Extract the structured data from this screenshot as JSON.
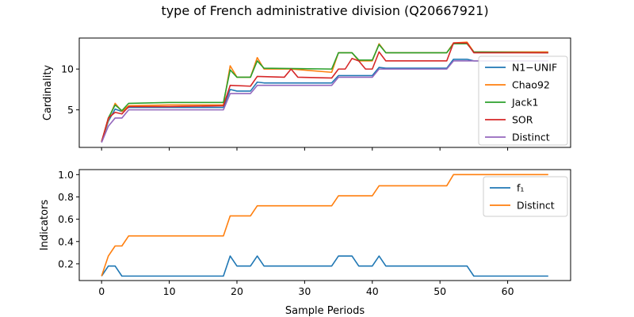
{
  "figure": {
    "title": "type of French administrative division (Q20667921)",
    "xlabel": "Sample Periods"
  },
  "chart_data": [
    {
      "type": "line",
      "title": "",
      "xlabel": "",
      "ylabel": "Cardinality",
      "xlim": [
        -3.3,
        69.3
      ],
      "ylim": [
        0.4,
        13.8
      ],
      "xticks": [
        0,
        10,
        20,
        30,
        40,
        50,
        60
      ],
      "xtick_labels": [],
      "yticks": [
        5,
        10
      ],
      "ytick_labels": [
        "5",
        "10"
      ],
      "legend_placement": "lower-right",
      "grid": false,
      "series": [
        {
          "name": "N1−UNIF",
          "color": "#1f77b4",
          "points": [
            [
              0,
              1.1
            ],
            [
              1,
              3.6
            ],
            [
              2,
              5.1
            ],
            [
              3,
              4.8
            ],
            [
              4,
              5.3
            ],
            [
              10,
              5.3
            ],
            [
              18,
              5.3
            ],
            [
              19,
              7.5
            ],
            [
              20,
              7.3
            ],
            [
              22,
              7.3
            ],
            [
              23,
              8.4
            ],
            [
              24,
              8.3
            ],
            [
              34,
              8.3
            ],
            [
              35,
              9.2
            ],
            [
              38,
              9.2
            ],
            [
              39,
              9.2
            ],
            [
              40,
              9.2
            ],
            [
              41,
              10.2
            ],
            [
              42,
              10.1
            ],
            [
              51,
              10.1
            ],
            [
              52,
              11.2
            ],
            [
              54,
              11.2
            ],
            [
              55,
              11.0
            ],
            [
              66,
              11.0
            ]
          ]
        },
        {
          "name": "Chao92",
          "color": "#ff7f0e",
          "points": [
            [
              0,
              1.1
            ],
            [
              1,
              3.8
            ],
            [
              2,
              5.8
            ],
            [
              3,
              4.8
            ],
            [
              4,
              5.5
            ],
            [
              10,
              5.6
            ],
            [
              18,
              5.6
            ],
            [
              19,
              10.4
            ],
            [
              20,
              9.0
            ],
            [
              22,
              9.0
            ],
            [
              23,
              11.4
            ],
            [
              24,
              10.0
            ],
            [
              28,
              10.0
            ],
            [
              34,
              9.6
            ],
            [
              35,
              12.0
            ],
            [
              37,
              12.0
            ],
            [
              38,
              11.0
            ],
            [
              40,
              11.0
            ],
            [
              41,
              13.1
            ],
            [
              42,
              12.0
            ],
            [
              51,
              12.0
            ],
            [
              52,
              13.2
            ],
            [
              54,
              13.3
            ],
            [
              55,
              12.1
            ],
            [
              66,
              12.1
            ]
          ]
        },
        {
          "name": "Jack1",
          "color": "#2ca02c",
          "points": [
            [
              0,
              1.1
            ],
            [
              1,
              4.0
            ],
            [
              2,
              5.6
            ],
            [
              3,
              4.9
            ],
            [
              4,
              5.8
            ],
            [
              10,
              5.9
            ],
            [
              18,
              5.9
            ],
            [
              19,
              9.9
            ],
            [
              20,
              9.0
            ],
            [
              22,
              9.0
            ],
            [
              23,
              11.0
            ],
            [
              24,
              10.1
            ],
            [
              34,
              10.0
            ],
            [
              35,
              12.0
            ],
            [
              37,
              12.0
            ],
            [
              38,
              11.1
            ],
            [
              40,
              11.1
            ],
            [
              41,
              13.0
            ],
            [
              42,
              12.0
            ],
            [
              51,
              12.0
            ],
            [
              52,
              13.1
            ],
            [
              54,
              13.1
            ],
            [
              55,
              12.1
            ],
            [
              66,
              12.0
            ]
          ]
        },
        {
          "name": "SOR",
          "color": "#d62728",
          "points": [
            [
              0,
              1.1
            ],
            [
              1,
              4.0
            ],
            [
              2,
              4.7
            ],
            [
              3,
              4.5
            ],
            [
              4,
              5.4
            ],
            [
              10,
              5.4
            ],
            [
              18,
              5.5
            ],
            [
              19,
              8.0
            ],
            [
              22,
              7.9
            ],
            [
              23,
              9.1
            ],
            [
              27,
              9.0
            ],
            [
              28,
              10.0
            ],
            [
              29,
              9.0
            ],
            [
              34,
              8.9
            ],
            [
              35,
              10.0
            ],
            [
              36,
              10.0
            ],
            [
              37,
              11.3
            ],
            [
              38,
              11.0
            ],
            [
              39,
              10.0
            ],
            [
              40,
              10.0
            ],
            [
              41,
              12.1
            ],
            [
              42,
              11.0
            ],
            [
              51,
              11.0
            ],
            [
              52,
              13.2
            ],
            [
              54,
              13.2
            ],
            [
              55,
              12.0
            ],
            [
              66,
              12.0
            ]
          ]
        },
        {
          "name": "Distinct",
          "color": "#9467bd",
          "points": [
            [
              0,
              1.0
            ],
            [
              1,
              3.0
            ],
            [
              2,
              4.0
            ],
            [
              3,
              4.0
            ],
            [
              4,
              5.0
            ],
            [
              18,
              5.0
            ],
            [
              19,
              7.0
            ],
            [
              22,
              7.0
            ],
            [
              23,
              8.0
            ],
            [
              34,
              8.0
            ],
            [
              35,
              9.0
            ],
            [
              40,
              9.0
            ],
            [
              41,
              10.0
            ],
            [
              51,
              10.0
            ],
            [
              52,
              11.0
            ],
            [
              66,
              11.0
            ]
          ]
        }
      ]
    },
    {
      "type": "line",
      "title": "",
      "xlabel": "Sample Periods",
      "ylabel": "Indicators",
      "xlim": [
        -3.3,
        69.3
      ],
      "ylim": [
        0.05,
        1.045
      ],
      "xticks": [
        0,
        10,
        20,
        30,
        40,
        50,
        60
      ],
      "xtick_labels": [
        "0",
        "10",
        "20",
        "30",
        "40",
        "50",
        "60"
      ],
      "yticks": [
        0.2,
        0.4,
        0.6,
        0.8,
        1.0
      ],
      "ytick_labels": [
        "0.2",
        "0.4",
        "0.6",
        "0.8",
        "1.0"
      ],
      "legend_placement": "upper-right",
      "grid": false,
      "series": [
        {
          "name": "f₁",
          "color": "#1f77b4",
          "points": [
            [
              0,
              0.09
            ],
            [
              1,
              0.18
            ],
            [
              2,
              0.18
            ],
            [
              3,
              0.09
            ],
            [
              18,
              0.09
            ],
            [
              19,
              0.27
            ],
            [
              20,
              0.18
            ],
            [
              22,
              0.18
            ],
            [
              23,
              0.27
            ],
            [
              24,
              0.18
            ],
            [
              34,
              0.18
            ],
            [
              35,
              0.27
            ],
            [
              37,
              0.27
            ],
            [
              38,
              0.18
            ],
            [
              40,
              0.18
            ],
            [
              41,
              0.27
            ],
            [
              42,
              0.18
            ],
            [
              54,
              0.18
            ],
            [
              55,
              0.09
            ],
            [
              66,
              0.09
            ]
          ]
        },
        {
          "name": "Distinct",
          "color": "#ff7f0e",
          "points": [
            [
              0,
              0.09
            ],
            [
              1,
              0.27
            ],
            [
              2,
              0.36
            ],
            [
              3,
              0.36
            ],
            [
              4,
              0.45
            ],
            [
              18,
              0.45
            ],
            [
              19,
              0.63
            ],
            [
              22,
              0.63
            ],
            [
              23,
              0.72
            ],
            [
              34,
              0.72
            ],
            [
              35,
              0.81
            ],
            [
              40,
              0.81
            ],
            [
              41,
              0.9
            ],
            [
              51,
              0.9
            ],
            [
              52,
              1.0
            ],
            [
              66,
              1.0
            ]
          ]
        }
      ]
    }
  ]
}
